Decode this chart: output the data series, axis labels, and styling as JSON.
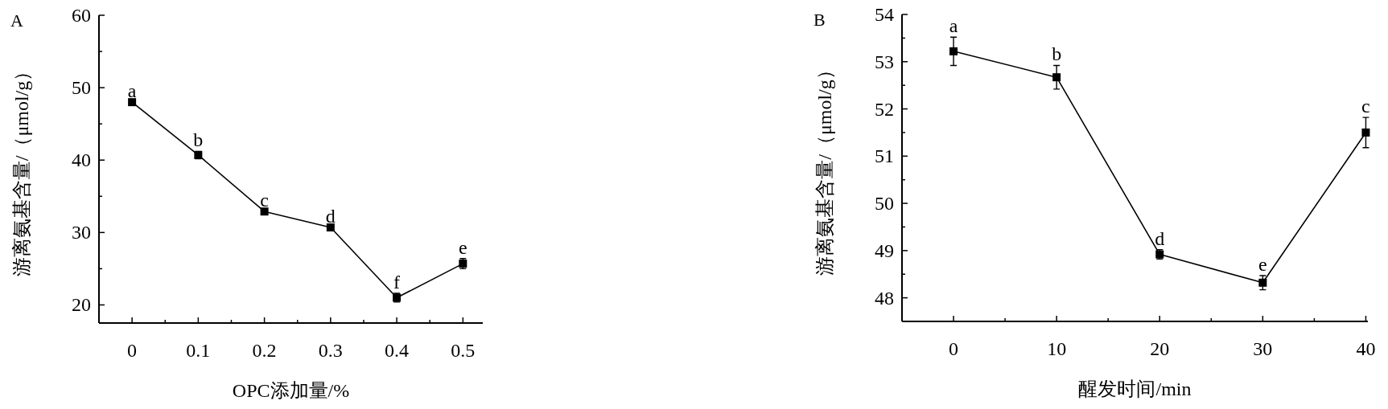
{
  "chart_data": [
    {
      "type": "line",
      "title": "A",
      "xlabel": "OPC添加量/%",
      "ylabel": "游离氨基含量/（μmol/g）",
      "marker": "square",
      "line_style": "solid",
      "x": [
        0,
        0.1,
        0.2,
        0.3,
        0.4,
        0.5
      ],
      "series": [
        {
          "color": "#000000",
          "values": [
            48.0,
            40.7,
            32.9,
            30.7,
            21.0,
            25.7
          ],
          "errors": [
            null,
            0.5,
            null,
            null,
            0.6,
            0.7
          ]
        }
      ],
      "xlim": [
        -0.05,
        0.53
      ],
      "ylim": [
        17.5,
        60
      ],
      "xticks": [
        0,
        {
          "value": 0.05,
          "label": null
        },
        0.1,
        {
          "value": 0.15,
          "label": null
        },
        0.2,
        {
          "value": 0.25,
          "label": null
        },
        0.3,
        {
          "value": 0.35,
          "label": null
        },
        0.4,
        {
          "value": 0.45,
          "label": null
        },
        0.5
      ],
      "yticks": [
        20,
        {
          "value": 25,
          "label": null
        },
        30,
        {
          "value": 35,
          "label": null
        },
        40,
        {
          "value": 45,
          "label": null
        },
        50,
        {
          "value": 55,
          "label": null
        },
        60
      ],
      "annotations": [
        {
          "text": "a",
          "x": 0,
          "y": 48.0
        },
        {
          "text": "b",
          "x": 0.1,
          "y": 40.7
        },
        {
          "text": "c",
          "x": 0.2,
          "y": 32.9
        },
        {
          "text": "d",
          "x": 0.3,
          "y": 30.7
        },
        {
          "text": "f",
          "x": 0.4,
          "y": 21.0
        },
        {
          "text": "e",
          "x": 0.5,
          "y": 25.7
        }
      ]
    },
    {
      "type": "line",
      "title": "B",
      "xlabel": "醒发时间/min",
      "ylabel": "游离氨基含量/（μmol/g）",
      "marker": "square",
      "line_style": "solid",
      "x": [
        0,
        10,
        20,
        30,
        40
      ],
      "series": [
        {
          "color": "#000000",
          "values": [
            53.22,
            52.67,
            48.92,
            48.32,
            51.5
          ],
          "errors": [
            0.3,
            0.25,
            0.1,
            0.15,
            0.32
          ]
        }
      ],
      "xlim": [
        -5,
        40.2
      ],
      "ylim": [
        47.5,
        54
      ],
      "xticks": [
        0,
        {
          "value": 5,
          "label": null
        },
        10,
        {
          "value": 15,
          "label": null
        },
        20,
        {
          "value": 25,
          "label": null
        },
        30,
        {
          "value": 35,
          "label": null
        },
        40
      ],
      "yticks": [
        48,
        {
          "value": 48.5,
          "label": null
        },
        49,
        {
          "value": 49.5,
          "label": null
        },
        50,
        {
          "value": 50.5,
          "label": null
        },
        51,
        {
          "value": 51.5,
          "label": null
        },
        52,
        {
          "value": 52.5,
          "label": null
        },
        53,
        {
          "value": 53.5,
          "label": null
        },
        54
      ],
      "annotations": [
        {
          "text": "a",
          "x": 0,
          "y": 53.22
        },
        {
          "text": "b",
          "x": 10,
          "y": 52.67
        },
        {
          "text": "d",
          "x": 20,
          "y": 48.92
        },
        {
          "text": "e",
          "x": 30,
          "y": 48.32
        },
        {
          "text": "c",
          "x": 40,
          "y": 51.5
        }
      ]
    }
  ]
}
